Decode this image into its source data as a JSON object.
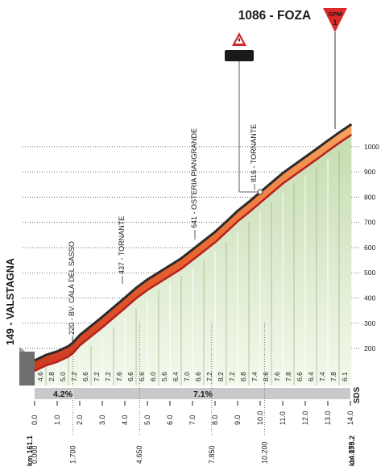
{
  "chart_data": {
    "type": "area",
    "title": "1086 - FOZA",
    "start_label": "149 - VALSTAGNA",
    "xlim": [
      0,
      14.05
    ],
    "ylim": [
      100,
      1100
    ],
    "y_ticks": [
      "200",
      "300",
      "400",
      "500",
      "600",
      "700",
      "800",
      "900",
      "1000"
    ],
    "x_ticks": [
      "0.0",
      "1.0",
      "2.0",
      "3.0",
      "4.0",
      "5.0",
      "6.0",
      "7.0",
      "8.0",
      "9.0",
      "10.0",
      "11.0",
      "12.0",
      "13.0",
      "14.0"
    ],
    "profile": {
      "x": [
        0,
        0.5,
        1.0,
        1.5,
        1.7,
        2.0,
        2.5,
        3.0,
        3.5,
        4.0,
        4.5,
        5.0,
        5.5,
        6.0,
        6.5,
        7.0,
        7.5,
        8.0,
        8.5,
        9.0,
        9.5,
        10.0,
        10.5,
        11.0,
        11.5,
        12.0,
        12.5,
        13.0,
        13.5,
        14.05
      ],
      "y": [
        149,
        171,
        185,
        206,
        220,
        250,
        286,
        322,
        360,
        398,
        437,
        470,
        498,
        526,
        554,
        589,
        624,
        659,
        700,
        742,
        778,
        816,
        854,
        892,
        924,
        956,
        988,
        1021,
        1053,
        1086
      ]
    },
    "km_segment_gradients": [
      "4.6",
      "2.8",
      "5.0",
      "7.2",
      "6.6",
      "7.2",
      "7.2",
      "7.6",
      "6.6",
      "6.6",
      "6.0",
      "5.6",
      "6.4",
      "7.0",
      "6.6",
      "7.2",
      "8.2",
      "7.2",
      "6.8",
      "7.4",
      "8.6",
      "7.6",
      "7.8",
      "6.6",
      "6.4",
      "7.4",
      "7.8",
      "6.1"
    ],
    "overall_gradients": [
      {
        "label": "4.2%"
      },
      {
        "label": "7.1%"
      }
    ],
    "waypoints": [
      {
        "km": 1.7,
        "label": "220 - BV. CALÀ DEL SASSO"
      },
      {
        "km": 4.65,
        "label": "437 - TORNANTE"
      },
      {
        "km": 7.85,
        "label": "641 - OSTERIA PIANGRANDE"
      },
      {
        "km": 10.2,
        "label": "816 - TORNANTE"
      }
    ],
    "max_gradient": {
      "label": "max 11%"
    },
    "gpm": {
      "label": "GPM",
      "category": "1"
    },
    "bottom_km_labels": [
      {
        "km": 0,
        "label": "0.000"
      },
      {
        "km": 1.7,
        "label": "1.700"
      },
      {
        "km": 4.65,
        "label": "4.650"
      },
      {
        "km": 7.85,
        "label": "7.850"
      },
      {
        "km": 10.2,
        "label": "10.200"
      },
      {
        "km": 14.05,
        "label": "14.050"
      }
    ],
    "km_start": "km 161.1",
    "km_end": "km 175.2",
    "brand": "SDS"
  }
}
